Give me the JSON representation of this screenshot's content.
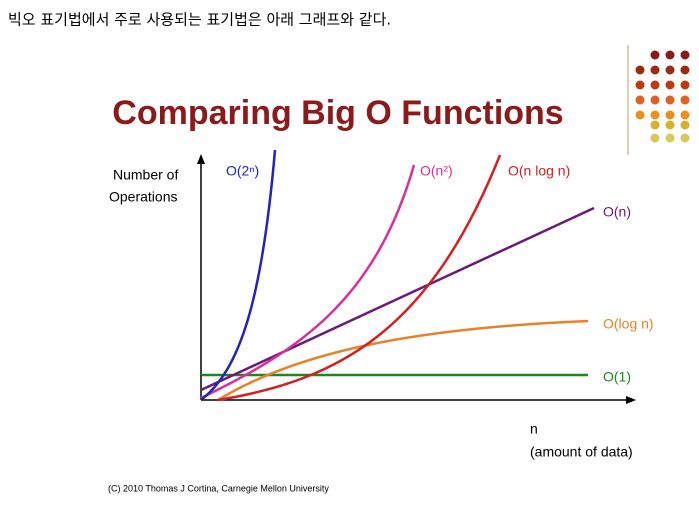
{
  "heading": "빅오 표기법에서 주로 사용되는 표기법은 아래 그래프와 같다.",
  "slide": {
    "title": "Comparing Big O Functions",
    "y_axis_label": [
      "Number of",
      "Operations"
    ],
    "x_axis_label": [
      "n",
      "(amount of data)"
    ],
    "curves": [
      "O(2ⁿ)",
      "O(n²)",
      "O(n log n)",
      "O(n)",
      "O(log n)",
      "O(1)"
    ],
    "footer": "(C) 2010 Thomas J Cortina, Carnegie Mellon University"
  }
}
